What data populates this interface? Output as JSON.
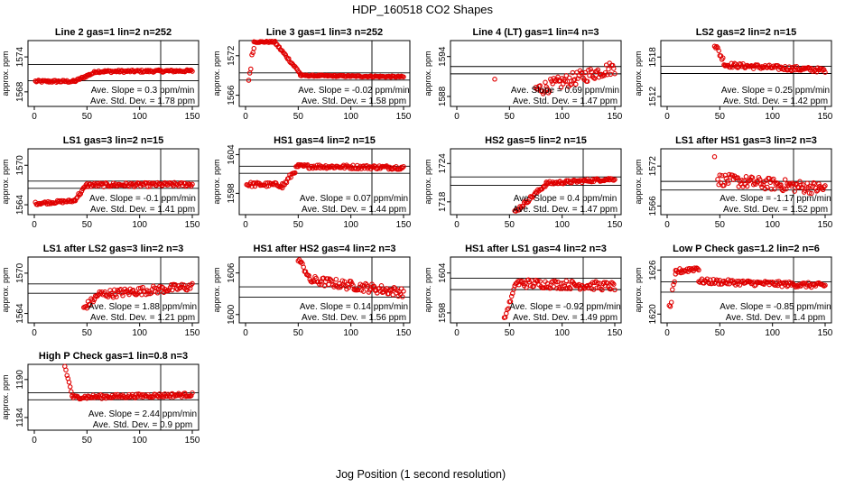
{
  "figure": {
    "title": "HDP_160518  CO2 Shapes",
    "xlabel": "Jog Position (1 second resolution)",
    "point_color": "#e00000"
  },
  "chart_data": [
    {
      "type": "scatter",
      "title": "Line 2 gas=1 lin=2 n=252",
      "ylabel": "approx. ppm",
      "xlim": [
        0,
        150
      ],
      "ylim": [
        1565.5,
        1576.8
      ],
      "xticks": [
        "0",
        "50",
        "100",
        "150"
      ],
      "xtick_values": [
        0,
        50,
        100,
        150
      ],
      "yticks": [
        "1568",
        "1574"
      ],
      "ytick_values": [
        1568,
        1574
      ],
      "hlines": [
        1572.7,
        1569.9
      ],
      "vline": 120,
      "slope_text": "Ave. Slope =  0.3  ppm/min",
      "sd_text": "Ave. Std. Dev. =  1.78  ppm",
      "segments": [
        [
          1,
          38,
          1569.8,
          1569.8,
          0.2
        ],
        [
          38,
          58,
          1569.8,
          1571.4,
          0.2
        ],
        [
          58,
          150,
          1571.5,
          1571.6,
          0.2
        ]
      ]
    },
    {
      "type": "scatter",
      "title": "Line 3 gas=1 lin=3 n=252",
      "ylabel": "approx. ppm",
      "xlim": [
        0,
        150
      ],
      "ylim": [
        1564.3,
        1574.3
      ],
      "xticks": [
        "0",
        "50",
        "100",
        "150"
      ],
      "xtick_values": [
        0,
        50,
        100,
        150
      ],
      "yticks": [
        "1566",
        "1572"
      ],
      "ytick_values": [
        1566,
        1572
      ],
      "hlines": [
        1569.4,
        1568.3
      ],
      "vline": 120,
      "slope_text": "Ave. Slope = -0.02  ppm/min",
      "sd_text": "Ave. Std. Dev. =  1.58  ppm",
      "segments": [
        [
          3,
          8,
          1568.3,
          1573.8,
          0.7
        ],
        [
          8,
          28,
          1574.1,
          1574.1,
          0.1
        ],
        [
          28,
          52,
          1574.0,
          1569.3,
          0.2
        ],
        [
          52,
          150,
          1569.0,
          1568.8,
          0.1
        ]
      ]
    },
    {
      "type": "scatter",
      "title": "Line 4 (LT) gas=1 lin=4 n=3",
      "ylabel": "approx. ppm",
      "xlim": [
        0,
        150
      ],
      "ylim": [
        1586.5,
        1596.4
      ],
      "xticks": [
        "0",
        "50",
        "100",
        "150"
      ],
      "xtick_values": [
        0,
        50,
        100,
        150
      ],
      "yticks": [
        "1588",
        "1594"
      ],
      "ytick_values": [
        1588,
        1594
      ],
      "hlines": [
        1592.5,
        1591.4
      ],
      "vline": 120,
      "slope_text": "Ave. Slope =  0.69  ppm/min",
      "sd_text": "Ave. Std. Dev. =  1.47  ppm",
      "points": [
        [
          36,
          1590.6
        ]
      ],
      "segments": [
        [
          75,
          150,
          1589.0,
          1592.4,
          1.0
        ]
      ]
    },
    {
      "type": "scatter",
      "title": "LS2 gas=2 lin=2 n=15",
      "ylabel": "approx. ppm",
      "xlim": [
        0,
        150
      ],
      "ylim": [
        1510.5,
        1520.5
      ],
      "xticks": [
        "0",
        "50",
        "100",
        "150"
      ],
      "xtick_values": [
        0,
        50,
        100,
        150
      ],
      "yticks": [
        "1512",
        "1518"
      ],
      "ytick_values": [
        1512,
        1518
      ],
      "hlines": [
        1516.6,
        1515.5
      ],
      "vline": 120,
      "slope_text": "Ave. Slope =  0.25  ppm/min",
      "sd_text": "Ave. Std. Dev. =  1.42  ppm",
      "segments": [
        [
          45,
          55,
          1520.0,
          1517.0,
          0.5
        ],
        [
          55,
          150,
          1516.8,
          1516.0,
          0.35
        ]
      ]
    },
    {
      "type": "scatter",
      "title": "LS1 gas=3 lin=2 n=15",
      "ylabel": "approx. ppm",
      "xlim": [
        0,
        150
      ],
      "ylim": [
        1562.5,
        1572.5
      ],
      "xticks": [
        "0",
        "50",
        "100",
        "150"
      ],
      "xtick_values": [
        0,
        50,
        100,
        150
      ],
      "yticks": [
        "1564",
        "1570"
      ],
      "ytick_values": [
        1564,
        1570
      ],
      "hlines": [
        1567.6,
        1566.5
      ],
      "vline": 120,
      "slope_text": "Ave. Slope = -0.1  ppm/min",
      "sd_text": "Ave. Std. Dev. =  1.41  ppm",
      "segments": [
        [
          1,
          38,
          1564.2,
          1564.6,
          0.2
        ],
        [
          38,
          50,
          1564.7,
          1567.0,
          0.3
        ],
        [
          50,
          150,
          1567.0,
          1567.1,
          0.3
        ]
      ]
    },
    {
      "type": "scatter",
      "title": "HS1 gas=4 lin=2 n=15",
      "ylabel": "approx. ppm",
      "xlim": [
        0,
        150
      ],
      "ylim": [
        1594.7,
        1604.9
      ],
      "xticks": [
        "0",
        "50",
        "100",
        "150"
      ],
      "xtick_values": [
        0,
        50,
        100,
        150
      ],
      "yticks": [
        "1598",
        "1604"
      ],
      "ytick_values": [
        1598,
        1604
      ],
      "hlines": [
        1602.2,
        1601.1
      ],
      "vline": 120,
      "slope_text": "Ave. Slope =  0.07  ppm/min",
      "sd_text": "Ave. Std. Dev. =  1.44  ppm",
      "segments": [
        [
          1,
          35,
          1599.4,
          1599.3,
          0.35
        ],
        [
          35,
          50,
          1599.0,
          1602.2,
          0.4
        ],
        [
          50,
          150,
          1602.2,
          1602.0,
          0.3
        ]
      ]
    },
    {
      "type": "scatter",
      "title": "HS2 gas=5 lin=2 n=15",
      "ylabel": "approx. ppm",
      "xlim": [
        0,
        150
      ],
      "ylim": [
        1716.0,
        1726.3
      ],
      "xticks": [
        "0",
        "50",
        "100",
        "150"
      ],
      "xtick_values": [
        0,
        50,
        100,
        150
      ],
      "yticks": [
        "1718",
        "1724"
      ],
      "ytick_values": [
        1718,
        1724
      ],
      "hlines": [
        1721.9,
        1720.6
      ],
      "vline": 120,
      "slope_text": "Ave. Slope =  0.4  ppm/min",
      "sd_text": "Ave. Std. Dev. =  1.47  ppm",
      "segments": [
        [
          55,
          85,
          1716.4,
          1720.8,
          0.3
        ],
        [
          85,
          150,
          1720.9,
          1721.6,
          0.25
        ]
      ]
    },
    {
      "type": "scatter",
      "title": "LS1 after HS1 gas=3 lin=2 n=3",
      "ylabel": "approx. ppm",
      "xlim": [
        0,
        150
      ],
      "ylim": [
        1564.7,
        1574.6
      ],
      "xticks": [
        "0",
        "50",
        "100",
        "150"
      ],
      "xtick_values": [
        0,
        50,
        100,
        150
      ],
      "yticks": [
        "1566",
        "1572"
      ],
      "ytick_values": [
        1566,
        1572
      ],
      "hlines": [
        1569.7,
        1568.4
      ],
      "vline": 120,
      "slope_text": "Ave. Slope = -1.17  ppm/min",
      "sd_text": "Ave. Std. Dev. =  1.52  ppm",
      "points": [
        [
          45,
          1573.4
        ]
      ],
      "segments": [
        [
          48,
          150,
          1570.0,
          1568.6,
          0.9
        ]
      ]
    },
    {
      "type": "scatter",
      "title": "LS1 after LS2 gas=3 lin=2 n=3",
      "ylabel": "approx. ppm",
      "xlim": [
        0,
        150
      ],
      "ylim": [
        1562.6,
        1572.4
      ],
      "xticks": [
        "0",
        "50",
        "100",
        "150"
      ],
      "xtick_values": [
        0,
        50,
        100,
        150
      ],
      "yticks": [
        "1564",
        "1570"
      ],
      "ytick_values": [
        1564,
        1570
      ],
      "hlines": [
        1568.4,
        1567.0
      ],
      "vline": 120,
      "slope_text": "Ave. Slope =  1.88  ppm/min",
      "sd_text": "Ave. Std. Dev. =  1.21  ppm",
      "segments": [
        [
          47,
          60,
          1564.8,
          1566.6,
          0.5
        ],
        [
          60,
          150,
          1566.8,
          1568.0,
          0.6
        ]
      ]
    },
    {
      "type": "scatter",
      "title": "HS1 after HS2 gas=4 lin=2 n=3",
      "ylabel": "approx. ppm",
      "xlim": [
        0,
        150
      ],
      "ylim": [
        1598.8,
        1608.3
      ],
      "xticks": [
        "0",
        "50",
        "100",
        "150"
      ],
      "xtick_values": [
        0,
        50,
        100,
        150
      ],
      "yticks": [
        "1600",
        "1606"
      ],
      "ytick_values": [
        1600,
        1606
      ],
      "hlines": [
        1604.0,
        1602.5
      ],
      "vline": 120,
      "slope_text": "Ave. Slope =  0.14  ppm/min",
      "sd_text": "Ave. Std. Dev. =  1.56  ppm",
      "segments": [
        [
          50,
          60,
          1608.1,
          1605.5,
          0.4
        ],
        [
          60,
          150,
          1605.0,
          1603.2,
          0.65
        ]
      ]
    },
    {
      "type": "scatter",
      "title": "HS1 after LS1 gas=4 lin=2 n=3",
      "ylabel": "approx. ppm",
      "xlim": [
        0,
        150
      ],
      "ylim": [
        1596.5,
        1606.4
      ],
      "xticks": [
        "0",
        "50",
        "100",
        "150"
      ],
      "xtick_values": [
        0,
        50,
        100,
        150
      ],
      "yticks": [
        "1598",
        "1604"
      ],
      "ytick_values": [
        1598,
        1604
      ],
      "hlines": [
        1603.2,
        1601.5
      ],
      "vline": 120,
      "slope_text": "Ave. Slope = -0.92  ppm/min",
      "sd_text": "Ave. Std. Dev. =  1.49  ppm",
      "segments": [
        [
          45,
          55,
          1597.0,
          1601.8,
          0.3
        ],
        [
          55,
          150,
          1602.5,
          1602.0,
          0.65
        ]
      ]
    },
    {
      "type": "scatter",
      "title": "Low P Check gas=1.2 lin=2 n=6",
      "ylabel": "approx. ppm",
      "xlim": [
        0,
        150
      ],
      "ylim": [
        1618.8,
        1627.8
      ],
      "xticks": [
        "0",
        "50",
        "100",
        "150"
      ],
      "xtick_values": [
        0,
        50,
        100,
        150
      ],
      "yticks": [
        "1620",
        "1626"
      ],
      "ytick_values": [
        1620,
        1626
      ],
      "hlines": [
        1624.4,
        1623.0
      ],
      "vline": 120,
      "slope_text": "Ave. Slope = -0.85  ppm/min",
      "sd_text": "Ave. Std. Dev. =  1.4  ppm",
      "segments": [
        [
          2,
          8,
          1620.5,
          1624.8,
          0.7
        ],
        [
          8,
          30,
          1625.8,
          1626.3,
          0.35
        ],
        [
          30,
          150,
          1624.5,
          1623.9,
          0.35
        ]
      ]
    },
    {
      "type": "scatter",
      "title": "High P Check gas=1 lin=0.8 n=3",
      "ylabel": "approx. ppm",
      "xlim": [
        0,
        150
      ],
      "ylim": [
        1182.0,
        1192.4
      ],
      "xticks": [
        "0",
        "50",
        "100",
        "150"
      ],
      "xtick_values": [
        0,
        50,
        100,
        150
      ],
      "yticks": [
        "1184",
        "1190"
      ],
      "ytick_values": [
        1184,
        1190
      ],
      "hlines": [
        1187.9,
        1186.8
      ],
      "vline": 120,
      "slope_text": "Ave. Slope =  2.44  ppm/min",
      "sd_text": "Ave. Std. Dev. =  0.9  ppm",
      "segments": [
        [
          29,
          36,
          1192.1,
          1187.5,
          0.3
        ],
        [
          36,
          150,
          1187.2,
          1187.6,
          0.3
        ]
      ]
    }
  ]
}
